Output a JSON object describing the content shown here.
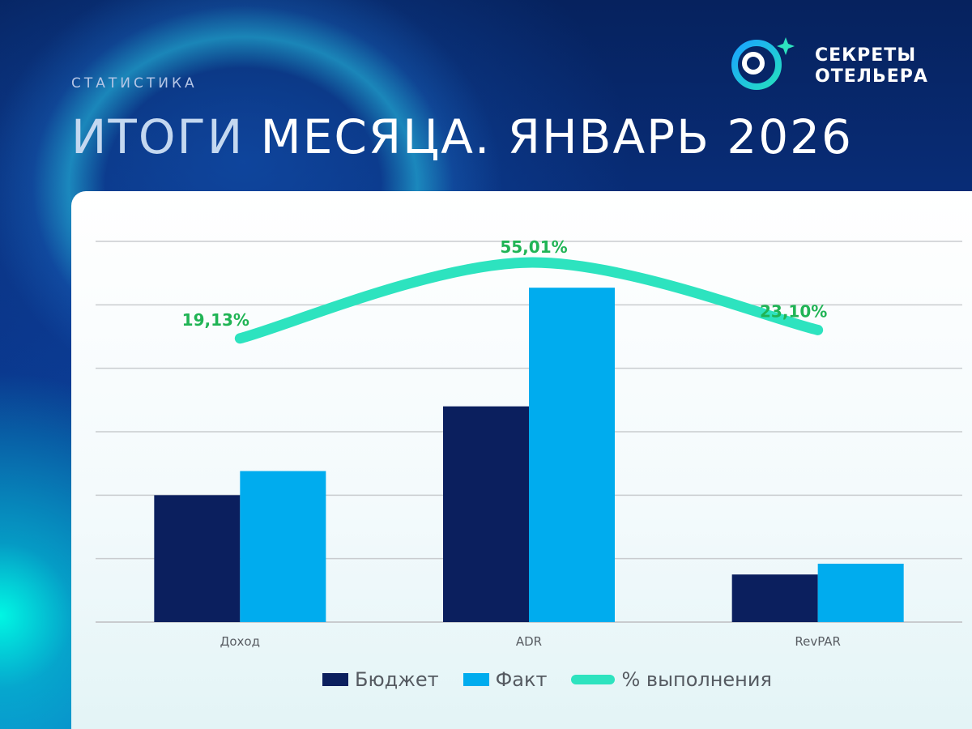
{
  "header": {
    "section_label": "СТАТИСТИКА",
    "title_light": "ИТОГИ",
    "title_main": "МЕСЯЦА. ЯНВАРЬ 2026"
  },
  "brand": {
    "name_line1": "СЕКРЕТЫ",
    "name_line2": "ОТЕЛЬЕРА",
    "logo_icon": "ring-with-sparkle-icon"
  },
  "colors": {
    "budget": "#0b1f5e",
    "fact": "#00acee",
    "completion": "#2de3bf",
    "completion_label": "#20b455",
    "gridline": "#c9cccf",
    "tick_text": "#585c62"
  },
  "chart_data": {
    "type": "bar",
    "title": "",
    "xlabel": "",
    "ylabel": "",
    "ylim": [
      0,
      6
    ],
    "grid": true,
    "legend_position": "bottom",
    "categories": [
      "Доход",
      "ADR",
      "RevPAR"
    ],
    "series": [
      {
        "name": "Бюджет",
        "type": "bar",
        "values": [
          2.0,
          3.4,
          0.75
        ]
      },
      {
        "name": "Факт",
        "type": "bar",
        "values": [
          2.38,
          5.27,
          0.92
        ]
      },
      {
        "name": "% выполнения",
        "type": "line",
        "values": [
          19.13,
          55.01,
          23.1
        ],
        "labels": [
          "19,13%",
          "55,01%",
          "23,10%"
        ],
        "secondary_axis": true,
        "ylim": [
          -115,
          65
        ]
      }
    ]
  }
}
